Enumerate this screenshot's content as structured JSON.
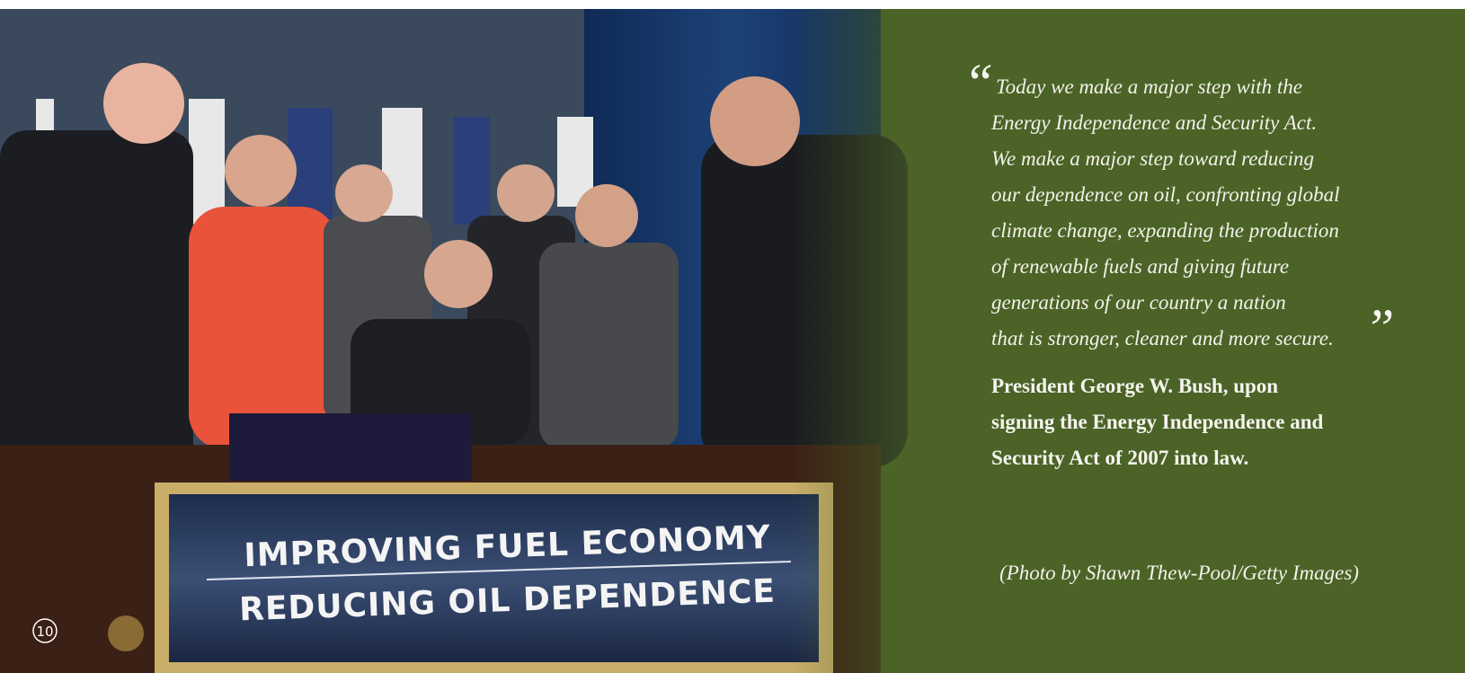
{
  "page": {
    "number": "10",
    "photo": {
      "sign_lines": [
        "IMPROVING FUEL ECONOMY",
        "REDUCING OIL DEPENDENCE"
      ]
    },
    "quote": {
      "open_mark": "“",
      "close_mark": "”",
      "lines": [
        "Today we make a major step with the",
        "Energy Independence and Security Act.",
        "We make a major step toward reducing",
        "our dependence on oil, confronting global",
        "climate change, expanding the production",
        "of renewable fuels and giving future",
        "generations of our country a nation",
        "that is stronger, cleaner and more secure."
      ]
    },
    "attribution": [
      "President George W. Bush, upon",
      "signing the Energy Independence and",
      "Security Act of 2007 into law."
    ],
    "credit": "(Photo by Shawn Thew-Pool/Getty Images)"
  }
}
